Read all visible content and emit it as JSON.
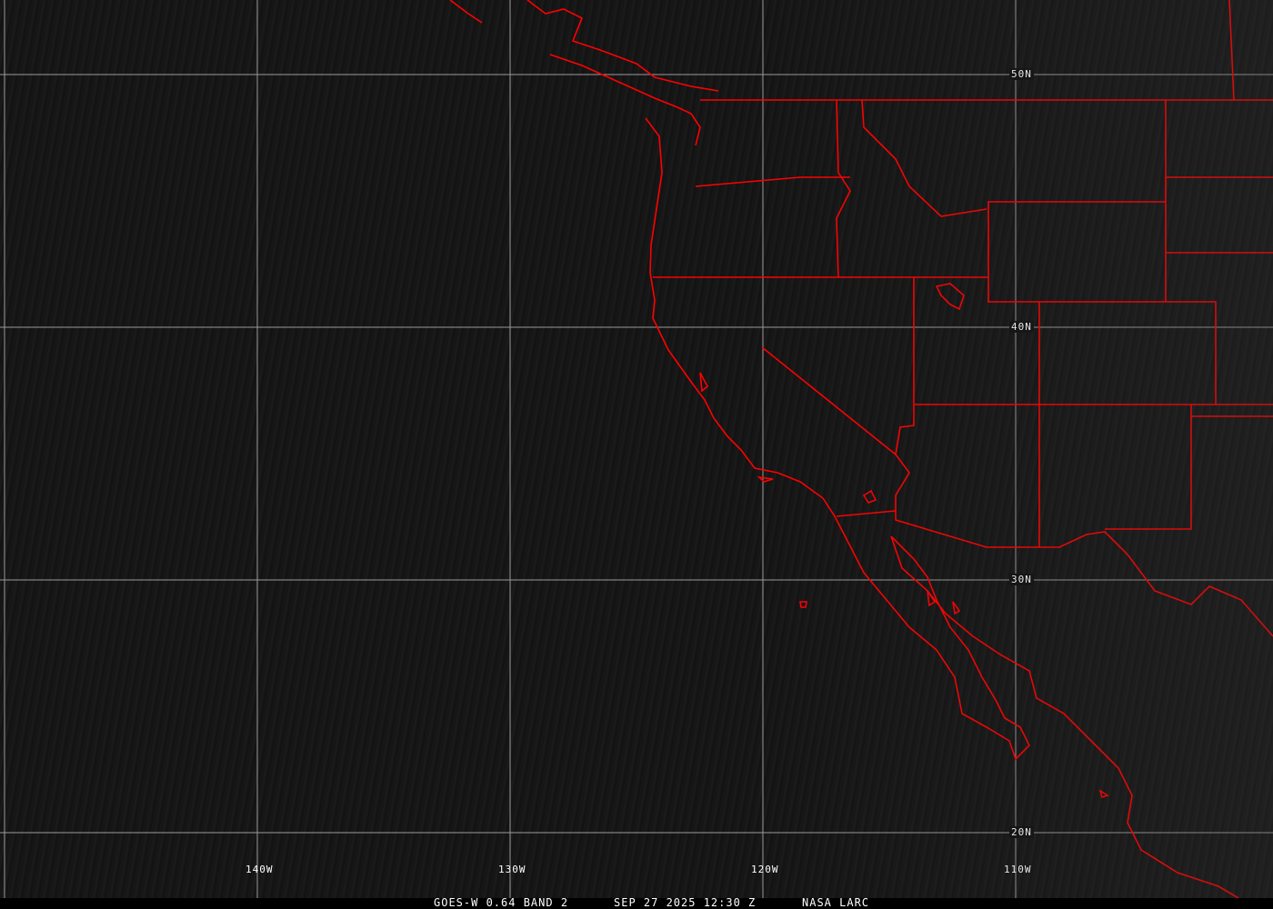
{
  "map": {
    "grid_color": "#9a9a9a",
    "boundary_color": "#ff0000",
    "latitude_labels": [
      "50N",
      "40N",
      "30N",
      "20N"
    ],
    "longitude_labels": [
      "140W",
      "130W",
      "120W",
      "110W"
    ]
  },
  "caption": {
    "product": "GOES-W 0.64 BAND 2",
    "datetime": "SEP 27 2025 12:30 Z",
    "source": "NASA LARC"
  }
}
